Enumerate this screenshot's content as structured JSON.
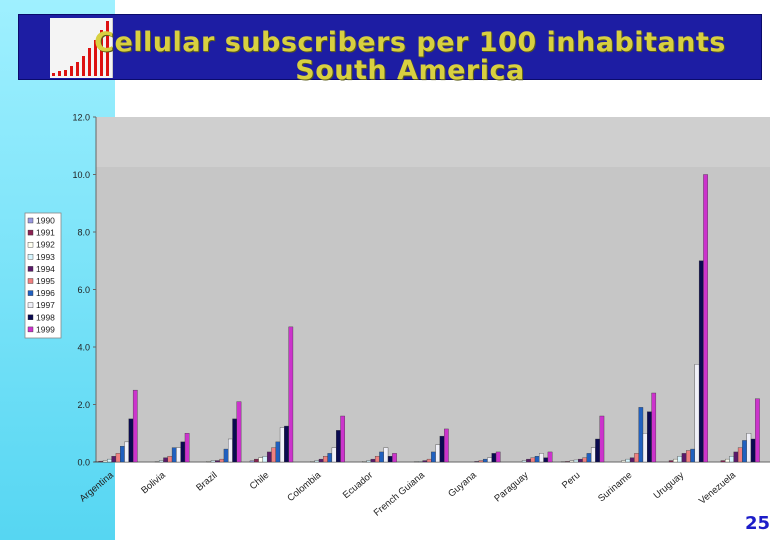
{
  "slide": {
    "title_line1": "Cellular subscribers per 100 inhabitants",
    "title_line2": "South America",
    "page_number": "25"
  },
  "colors": {
    "header_bg": "#1d1da3",
    "title": "#d8d040",
    "left_band": "#56d6f2",
    "plot_bg": "#c6c6c6"
  },
  "chart_data": {
    "type": "bar",
    "title": "",
    "xlabel": "",
    "ylabel": "",
    "ylim": [
      0,
      12
    ],
    "yticks": [
      "0.0",
      "2.0",
      "4.0",
      "6.0",
      "8.0",
      "10.0",
      "12.0"
    ],
    "grid": false,
    "legend_position": "left",
    "categories": [
      "Argentina",
      "Bolivia",
      "Brazil",
      "Chile",
      "Colombia",
      "Ecuador",
      "French Guiana",
      "Guyana",
      "Paraguay",
      "Peru",
      "Suriname",
      "Uruguay",
      "Venezuela"
    ],
    "series": [
      {
        "name": "1990",
        "color": "#9a9ae0",
        "values": [
          0.01,
          0.0,
          0.0,
          0.04,
          0.0,
          0.0,
          0.0,
          0.0,
          0.0,
          0.01,
          0.0,
          0.0,
          0.0
        ]
      },
      {
        "name": "1991",
        "color": "#8b2252",
        "values": [
          0.03,
          0.0,
          0.0,
          0.1,
          0.0,
          0.0,
          0.0,
          0.0,
          0.0,
          0.02,
          0.0,
          0.05,
          0.05
        ]
      },
      {
        "name": "1992",
        "color": "#fffff0",
        "values": [
          0.05,
          0.01,
          0.02,
          0.15,
          0.02,
          0.02,
          0.01,
          0.0,
          0.0,
          0.04,
          0.05,
          0.1,
          0.1
        ]
      },
      {
        "name": "1993",
        "color": "#d6f6ff",
        "values": [
          0.1,
          0.05,
          0.05,
          0.2,
          0.05,
          0.05,
          0.02,
          0.0,
          0.05,
          0.07,
          0.1,
          0.2,
          0.2
        ]
      },
      {
        "name": "1994",
        "color": "#5a1a6a",
        "values": [
          0.2,
          0.15,
          0.05,
          0.35,
          0.1,
          0.1,
          0.05,
          0.02,
          0.1,
          0.1,
          0.15,
          0.3,
          0.35
        ]
      },
      {
        "name": "1995",
        "color": "#f08080",
        "values": [
          0.3,
          0.2,
          0.1,
          0.5,
          0.2,
          0.2,
          0.1,
          0.05,
          0.15,
          0.15,
          0.3,
          0.4,
          0.5
        ]
      },
      {
        "name": "1996",
        "color": "#2060c0",
        "values": [
          0.55,
          0.5,
          0.45,
          0.7,
          0.3,
          0.35,
          0.35,
          0.1,
          0.2,
          0.3,
          1.9,
          0.45,
          0.75
        ]
      },
      {
        "name": "1997",
        "color": "#f0f0f8",
        "values": [
          0.7,
          0.5,
          0.8,
          1.2,
          0.5,
          0.5,
          0.6,
          0.15,
          0.3,
          0.5,
          1.0,
          3.4,
          1.0
        ]
      },
      {
        "name": "1998",
        "color": "#0a0a50",
        "values": [
          1.5,
          0.7,
          1.5,
          1.25,
          1.1,
          0.2,
          0.9,
          0.3,
          0.15,
          0.8,
          1.75,
          7.0,
          0.8
        ]
      },
      {
        "name": "1999",
        "color": "#cc33cc",
        "values": [
          2.5,
          1.0,
          2.1,
          4.7,
          1.6,
          0.3,
          1.15,
          0.35,
          0.35,
          1.6,
          2.4,
          10.0,
          2.2
        ]
      }
    ]
  }
}
